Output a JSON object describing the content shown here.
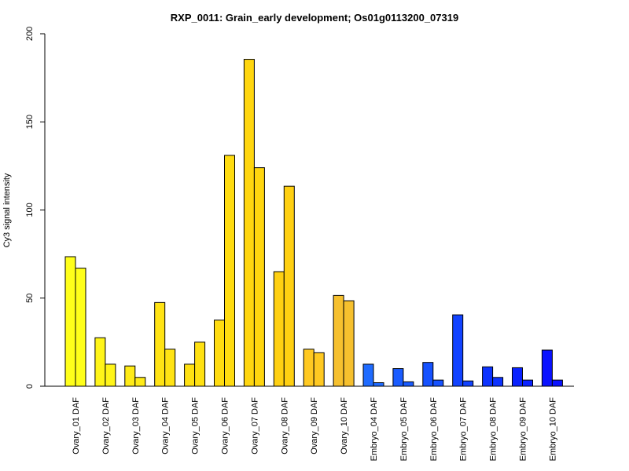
{
  "chart_data": {
    "type": "bar",
    "title": "RXP_0011: Grain_early development; Os01g0113200_07319",
    "xlabel": "",
    "ylabel": "Cy3 signal intensity",
    "ylim": [
      0,
      200
    ],
    "yticks": [
      0,
      50,
      100,
      150,
      200
    ],
    "grid": false,
    "legend": "none",
    "categories": [
      "Ovary_01 DAF",
      "Ovary_02 DAF",
      "Ovary_03 DAF",
      "Ovary_04 DAF",
      "Ovary_05 DAF",
      "Ovary_06 DAF",
      "Ovary_07 DAF",
      "Ovary_08 DAF",
      "Ovary_09 DAF",
      "Ovary_10 DAF",
      "Embryo_04 DAF",
      "Embryo_05 DAF",
      "Embryo_06 DAF",
      "Embryo_07 DAF",
      "Embryo_08 DAF",
      "Embryo_09 DAF",
      "Embryo_10 DAF"
    ],
    "series": [
      {
        "values": [
          73.5,
          27.5,
          11.5,
          47.5,
          12.5,
          37.5,
          185.5,
          65.0,
          21.0,
          51.5,
          12.5,
          10.0,
          13.5,
          40.5,
          11.0,
          10.5,
          20.5
        ]
      },
      {
        "values": [
          67.0,
          12.5,
          5.0,
          21.0,
          25.0,
          131.0,
          124.0,
          113.5,
          19.0,
          48.5,
          2.0,
          2.5,
          3.5,
          3.0,
          5.0,
          3.5,
          3.5
        ]
      }
    ],
    "colors": [
      "#ffff1a",
      "#fff519",
      "#ffeb17",
      "#ffe314",
      "#ffe112",
      "#ffdc10",
      "#ffd60f",
      "#ffd012",
      "#ffc922",
      "#f6c02e",
      "#1f6bff",
      "#1a5cff",
      "#1652ff",
      "#1243ff",
      "#0d33ff",
      "#0a22ff",
      "#0a12ff"
    ]
  }
}
